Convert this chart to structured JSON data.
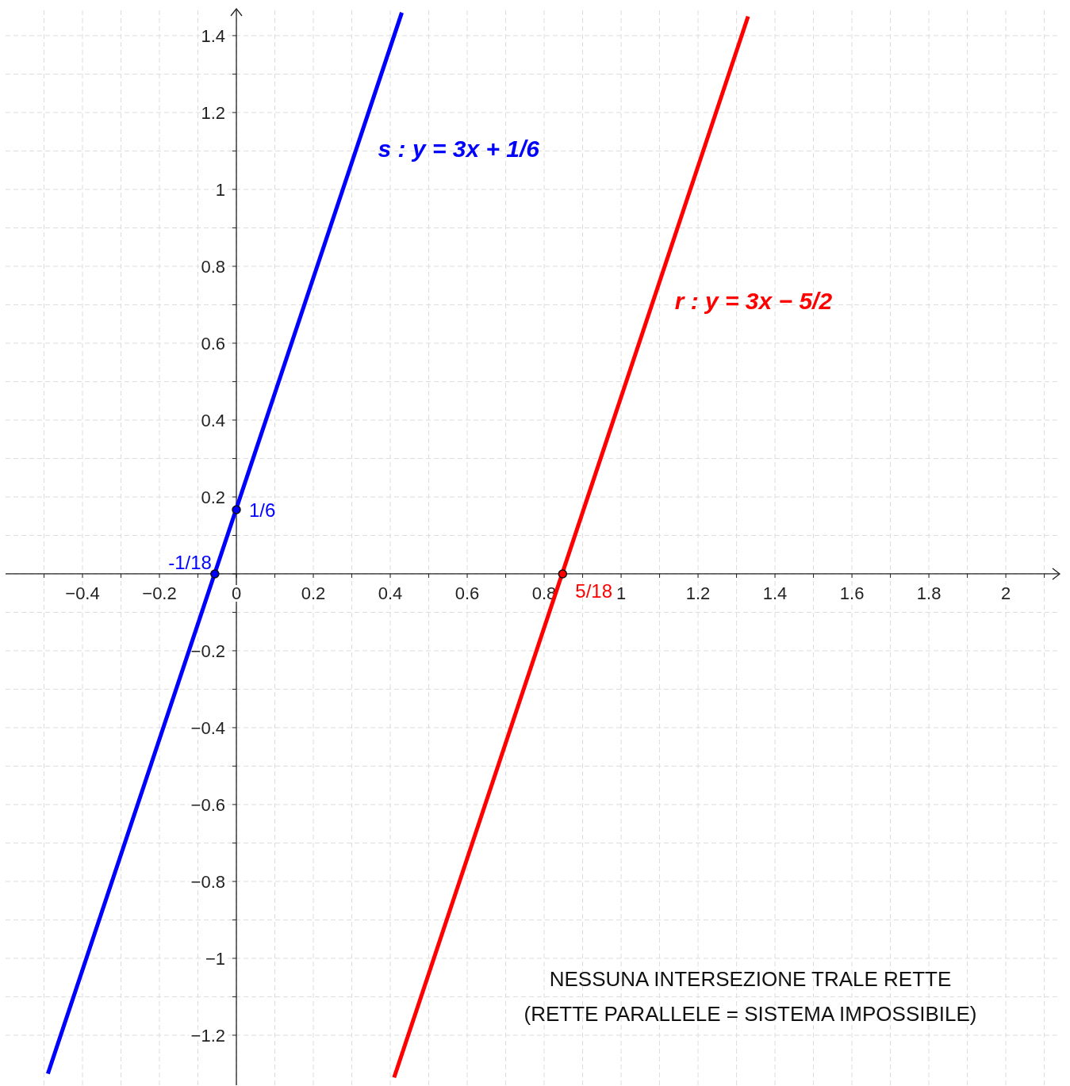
{
  "chart_data": {
    "type": "line",
    "xlim": [
      -0.6,
      2.14
    ],
    "ylim": [
      -1.33,
      1.47
    ],
    "xticks": [
      {
        "value": -0.5,
        "label": null
      },
      {
        "value": -0.4,
        "label": "−0.4"
      },
      {
        "value": -0.3,
        "label": null
      },
      {
        "value": -0.2,
        "label": "−0.2"
      },
      {
        "value": -0.1,
        "label": null
      },
      0,
      {
        "value": 0.1,
        "label": null
      },
      0.2,
      {
        "value": 0.3,
        "label": null
      },
      0.4,
      {
        "value": 0.5,
        "label": null
      },
      0.6,
      {
        "value": 0.7,
        "label": null
      },
      0.8,
      {
        "value": 0.9,
        "label": null
      },
      1,
      {
        "value": 1.1,
        "label": null
      },
      1.2,
      {
        "value": 1.3,
        "label": null
      },
      1.4,
      {
        "value": 1.5,
        "label": null
      },
      1.6,
      {
        "value": 1.7,
        "label": null
      },
      1.8,
      {
        "value": 1.9,
        "label": null
      },
      2,
      {
        "value": 2.1,
        "label": null
      }
    ],
    "yticks": [
      {
        "value": -1.2,
        "label": "−1.2"
      },
      {
        "value": -1.1,
        "label": null
      },
      {
        "value": -1,
        "label": "−1"
      },
      {
        "value": -0.9,
        "label": null
      },
      {
        "value": -0.8,
        "label": "−0.8"
      },
      {
        "value": -0.7,
        "label": null
      },
      {
        "value": -0.6,
        "label": "−0.6"
      },
      {
        "value": -0.5,
        "label": null
      },
      {
        "value": -0.4,
        "label": "−0.4"
      },
      {
        "value": -0.3,
        "label": null
      },
      {
        "value": -0.2,
        "label": "−0.2"
      },
      {
        "value": -0.1,
        "label": null
      },
      {
        "value": 0,
        "label": null
      },
      {
        "value": 0.1,
        "label": null
      },
      0.2,
      {
        "value": 0.3,
        "label": null
      },
      0.4,
      {
        "value": 0.5,
        "label": null
      },
      0.6,
      {
        "value": 0.7,
        "label": null
      },
      0.8,
      {
        "value": 0.9,
        "label": null
      },
      1,
      {
        "value": 1.1,
        "label": null
      },
      1.2,
      {
        "value": 1.3,
        "label": null
      },
      1.4
    ],
    "grid": true,
    "line_style": "solid",
    "series": [
      {
        "name": "s : y = 3x + 1/6",
        "color": "#0000ff",
        "x": [
          -0.49,
          0.43
        ],
        "values": [
          -1.3,
          1.46
        ]
      },
      {
        "name": "r : y = 3x − 5/2",
        "color": "#ff0000",
        "x": [
          0.41,
          1.33
        ],
        "values": [
          -1.31,
          1.45
        ]
      },
      {
        "type": "scatter",
        "color": "#0000ff",
        "marker": "circle",
        "x": [
          0,
          -0.056
        ],
        "values": [
          0.167,
          0
        ],
        "value_labels": [
          "1/6",
          "-1/18"
        ]
      },
      {
        "type": "scatter",
        "color": "#ff0000",
        "marker": "circle",
        "x": [
          0.848
        ],
        "values": [
          0
        ],
        "value_labels": [
          "5/18"
        ]
      }
    ],
    "annotations": [
      "NESSUNA INTERSEZIONE TRALE RETTE",
      "(RETTE PARALLELE = SISTEMA IMPOSSIBILE)"
    ]
  }
}
